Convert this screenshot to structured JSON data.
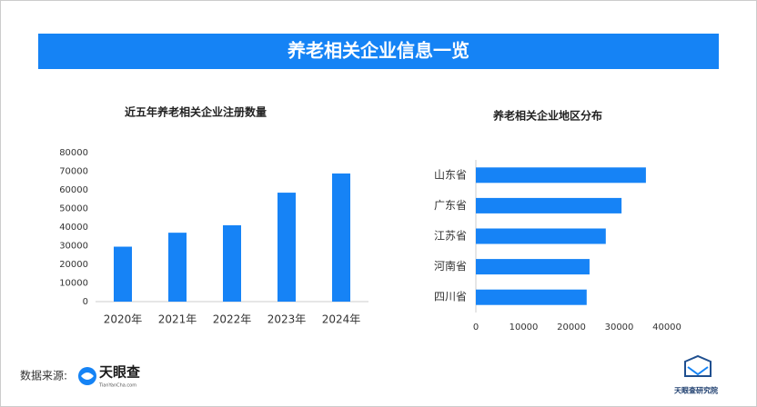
{
  "header": {
    "title": "养老相关企业信息一览"
  },
  "chart_data": [
    {
      "type": "bar",
      "orientation": "vertical",
      "title": "近五年养老相关企业注册数量",
      "categories": [
        "2020年",
        "2021年",
        "2022年",
        "2023年",
        "2024年"
      ],
      "values": [
        29500,
        37000,
        41000,
        58500,
        68800
      ],
      "color": "#1683f6",
      "ylim": [
        0,
        80000
      ],
      "yticks": [
        0,
        10000,
        20000,
        30000,
        40000,
        50000,
        60000,
        70000,
        80000
      ]
    },
    {
      "type": "bar",
      "orientation": "horizontal",
      "title": "养老相关企业地区分布",
      "categories": [
        "山东省",
        "广东省",
        "江苏省",
        "河南省",
        "四川省"
      ],
      "values": [
        35600,
        30500,
        27200,
        23800,
        23200
      ],
      "color": "#1683f6",
      "xlim": [
        0,
        40000
      ],
      "xticks": [
        0,
        10000,
        20000,
        30000,
        40000
      ]
    }
  ],
  "footer": {
    "source_label": "数据来源:",
    "logo_name": "天眼查",
    "logo_url": "TianYanCha.com",
    "institute": "天眼查研究院"
  }
}
